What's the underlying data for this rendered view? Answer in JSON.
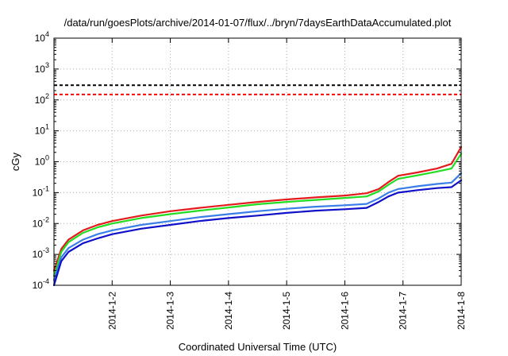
{
  "chart_data": {
    "type": "line",
    "title": "/data/run/goesPlots/archive/2014-01-07/flux/../bryn/7daysEarthDataAccumulated.plot",
    "xlabel": "Coordinated Universal Time (UTC)",
    "ylabel": "cGy",
    "x_scale": "time",
    "y_scale": "log",
    "xlim": [
      "2014-01-01T00:00",
      "2014-01-08T00:00"
    ],
    "ylim": [
      0.0001,
      10000
    ],
    "x_tick_labels": [
      "2014-1-2",
      "2014-1-3",
      "2014-1-4",
      "2014-1-5",
      "2014-1-6",
      "2014-1-7",
      "2014-1-8"
    ],
    "x_tick_values": [
      "2014-01-02T00:00",
      "2014-01-03T00:00",
      "2014-01-04T00:00",
      "2014-01-05T00:00",
      "2014-01-06T00:00",
      "2014-01-07T00:00",
      "2014-01-08T00:00"
    ],
    "y_tick_labels": [
      {
        "base": "10",
        "exp": "-4",
        "value": 0.0001
      },
      {
        "base": "10",
        "exp": "-3",
        "value": 0.001
      },
      {
        "base": "10",
        "exp": "-2",
        "value": 0.01
      },
      {
        "base": "10",
        "exp": "-1",
        "value": 0.1
      },
      {
        "base": "10",
        "exp": "0",
        "value": 1
      },
      {
        "base": "10",
        "exp": "1",
        "value": 10
      },
      {
        "base": "10",
        "exp": "2",
        "value": 100
      },
      {
        "base": "10",
        "exp": "3",
        "value": 1000
      },
      {
        "base": "10",
        "exp": "4",
        "value": 10000
      }
    ],
    "grid": true,
    "reference_lines": [
      {
        "value": 300,
        "color": "#000000",
        "style": "dashed"
      },
      {
        "value": 150,
        "color": "#ff0000",
        "style": "dashed"
      }
    ],
    "series": [
      {
        "color": "#e41a1c",
        "points": [
          [
            "2014-01-01T00:00",
            0.0003
          ],
          [
            "2014-01-01T03:00",
            0.0015
          ],
          [
            "2014-01-01T06:00",
            0.003
          ],
          [
            "2014-01-01T12:00",
            0.006
          ],
          [
            "2014-01-01T18:00",
            0.009
          ],
          [
            "2014-01-02T00:00",
            0.012
          ],
          [
            "2014-01-02T12:00",
            0.018
          ],
          [
            "2014-01-03T00:00",
            0.025
          ],
          [
            "2014-01-03T12:00",
            0.032
          ],
          [
            "2014-01-04T00:00",
            0.04
          ],
          [
            "2014-01-04T12:00",
            0.05
          ],
          [
            "2014-01-05T00:00",
            0.06
          ],
          [
            "2014-01-05T12:00",
            0.07
          ],
          [
            "2014-01-06T00:00",
            0.08
          ],
          [
            "2014-01-06T09:00",
            0.095
          ],
          [
            "2014-01-06T14:00",
            0.13
          ],
          [
            "2014-01-06T18:00",
            0.22
          ],
          [
            "2014-01-06T22:00",
            0.35
          ],
          [
            "2014-01-07T06:00",
            0.45
          ],
          [
            "2014-01-07T14:00",
            0.6
          ],
          [
            "2014-01-07T20:00",
            0.85
          ],
          [
            "2014-01-08T00:00",
            3.0
          ]
        ]
      },
      {
        "color": "#22dd22",
        "points": [
          [
            "2014-01-01T00:00",
            0.0002
          ],
          [
            "2014-01-01T03:00",
            0.0012
          ],
          [
            "2014-01-01T06:00",
            0.0025
          ],
          [
            "2014-01-01T12:00",
            0.005
          ],
          [
            "2014-01-01T18:00",
            0.0075
          ],
          [
            "2014-01-02T00:00",
            0.01
          ],
          [
            "2014-01-02T12:00",
            0.015
          ],
          [
            "2014-01-03T00:00",
            0.02
          ],
          [
            "2014-01-03T12:00",
            0.026
          ],
          [
            "2014-01-04T00:00",
            0.033
          ],
          [
            "2014-01-04T12:00",
            0.042
          ],
          [
            "2014-01-05T00:00",
            0.05
          ],
          [
            "2014-01-05T12:00",
            0.058
          ],
          [
            "2014-01-06T00:00",
            0.067
          ],
          [
            "2014-01-06T09:00",
            0.075
          ],
          [
            "2014-01-06T14:00",
            0.11
          ],
          [
            "2014-01-06T18:00",
            0.18
          ],
          [
            "2014-01-06T22:00",
            0.28
          ],
          [
            "2014-01-07T06:00",
            0.36
          ],
          [
            "2014-01-07T14:00",
            0.48
          ],
          [
            "2014-01-07T20:00",
            0.6
          ],
          [
            "2014-01-08T00:00",
            1.8
          ]
        ]
      },
      {
        "color": "#3a7fe8",
        "points": [
          [
            "2014-01-01T00:00",
            0.00015
          ],
          [
            "2014-01-01T03:00",
            0.0008
          ],
          [
            "2014-01-01T06:00",
            0.0016
          ],
          [
            "2014-01-01T12:00",
            0.003
          ],
          [
            "2014-01-01T18:00",
            0.0045
          ],
          [
            "2014-01-02T00:00",
            0.006
          ],
          [
            "2014-01-02T12:00",
            0.009
          ],
          [
            "2014-01-03T00:00",
            0.012
          ],
          [
            "2014-01-03T12:00",
            0.016
          ],
          [
            "2014-01-04T00:00",
            0.02
          ],
          [
            "2014-01-04T12:00",
            0.025
          ],
          [
            "2014-01-05T00:00",
            0.03
          ],
          [
            "2014-01-05T12:00",
            0.035
          ],
          [
            "2014-01-06T00:00",
            0.039
          ],
          [
            "2014-01-06T09:00",
            0.043
          ],
          [
            "2014-01-06T14:00",
            0.065
          ],
          [
            "2014-01-06T18:00",
            0.1
          ],
          [
            "2014-01-06T22:00",
            0.13
          ],
          [
            "2014-01-07T06:00",
            0.16
          ],
          [
            "2014-01-07T14:00",
            0.19
          ],
          [
            "2014-01-07T20:00",
            0.21
          ],
          [
            "2014-01-08T00:00",
            0.42
          ]
        ]
      },
      {
        "color": "#1010c8",
        "points": [
          [
            "2014-01-01T00:00",
            0.0001
          ],
          [
            "2014-01-01T03:00",
            0.0006
          ],
          [
            "2014-01-01T06:00",
            0.0012
          ],
          [
            "2014-01-01T12:00",
            0.0023
          ],
          [
            "2014-01-01T18:00",
            0.0033
          ],
          [
            "2014-01-02T00:00",
            0.0045
          ],
          [
            "2014-01-02T12:00",
            0.0068
          ],
          [
            "2014-01-03T00:00",
            0.009
          ],
          [
            "2014-01-03T12:00",
            0.012
          ],
          [
            "2014-01-04T00:00",
            0.015
          ],
          [
            "2014-01-04T12:00",
            0.018
          ],
          [
            "2014-01-05T00:00",
            0.022
          ],
          [
            "2014-01-05T12:00",
            0.026
          ],
          [
            "2014-01-06T00:00",
            0.029
          ],
          [
            "2014-01-06T09:00",
            0.032
          ],
          [
            "2014-01-06T14:00",
            0.05
          ],
          [
            "2014-01-06T18:00",
            0.075
          ],
          [
            "2014-01-06T22:00",
            0.1
          ],
          [
            "2014-01-07T06:00",
            0.12
          ],
          [
            "2014-01-07T14:00",
            0.14
          ],
          [
            "2014-01-07T20:00",
            0.15
          ],
          [
            "2014-01-08T00:00",
            0.25
          ]
        ]
      }
    ]
  }
}
